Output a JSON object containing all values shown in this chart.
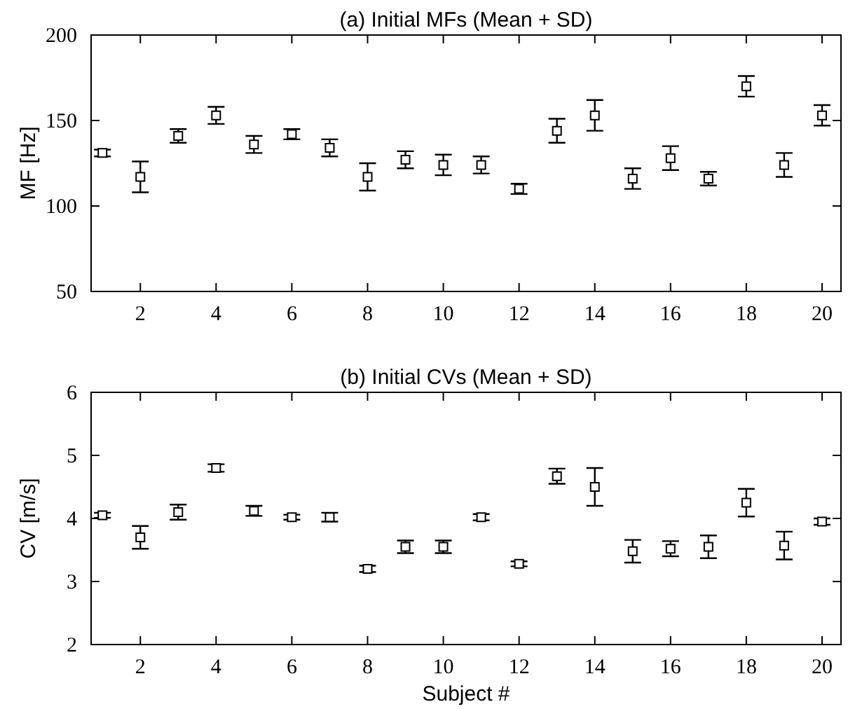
{
  "chart_data": [
    {
      "type": "scatter",
      "title": "(a) Initial MFs (Mean + SD)",
      "ylabel": "MF  [Hz]",
      "marker": "square",
      "x": [
        1,
        2,
        3,
        4,
        5,
        6,
        7,
        8,
        9,
        10,
        11,
        12,
        13,
        14,
        15,
        16,
        17,
        18,
        19,
        20
      ],
      "series": [
        {
          "color": "#000000",
          "values": [
            131,
            117,
            141,
            153,
            136,
            142,
            134,
            117,
            127,
            124,
            124,
            110,
            144,
            153,
            116,
            128,
            116,
            170,
            124,
            153
          ],
          "errors": [
            2,
            9,
            4,
            5,
            5,
            3,
            5,
            8,
            5,
            6,
            5,
            3,
            7,
            9,
            6,
            7,
            4,
            6,
            7,
            6
          ]
        }
      ],
      "xlim": [
        0.7,
        20.5
      ],
      "xticks": [
        2,
        4,
        6,
        8,
        10,
        12,
        14,
        16,
        18,
        20
      ],
      "ylim": [
        50,
        200
      ],
      "yticks": [
        50,
        100,
        150,
        200
      ],
      "grid": false
    },
    {
      "type": "scatter",
      "title": "(b) Initial CVs (Mean + SD)",
      "xlabel": "Subject #",
      "ylabel": "CV  [m/s]",
      "marker": "square",
      "x": [
        1,
        2,
        3,
        4,
        5,
        6,
        7,
        8,
        9,
        10,
        11,
        12,
        13,
        14,
        15,
        16,
        17,
        18,
        19,
        20
      ],
      "series": [
        {
          "color": "#000000",
          "values": [
            4.05,
            3.7,
            4.1,
            4.8,
            4.12,
            4.02,
            4.02,
            3.2,
            3.55,
            3.55,
            4.02,
            3.28,
            4.67,
            4.5,
            3.48,
            3.52,
            3.55,
            4.25,
            3.57,
            3.95
          ],
          "errors": [
            0.04,
            0.18,
            0.12,
            0.06,
            0.08,
            0.04,
            0.07,
            0.05,
            0.1,
            0.1,
            0.05,
            0.04,
            0.12,
            0.3,
            0.18,
            0.12,
            0.18,
            0.22,
            0.22,
            0.05
          ]
        }
      ],
      "xlim": [
        0.7,
        20.5
      ],
      "xticks": [
        2,
        4,
        6,
        8,
        10,
        12,
        14,
        16,
        18,
        20
      ],
      "ylim": [
        2,
        6
      ],
      "yticks": [
        2,
        3,
        4,
        5,
        6
      ],
      "grid": false
    }
  ]
}
